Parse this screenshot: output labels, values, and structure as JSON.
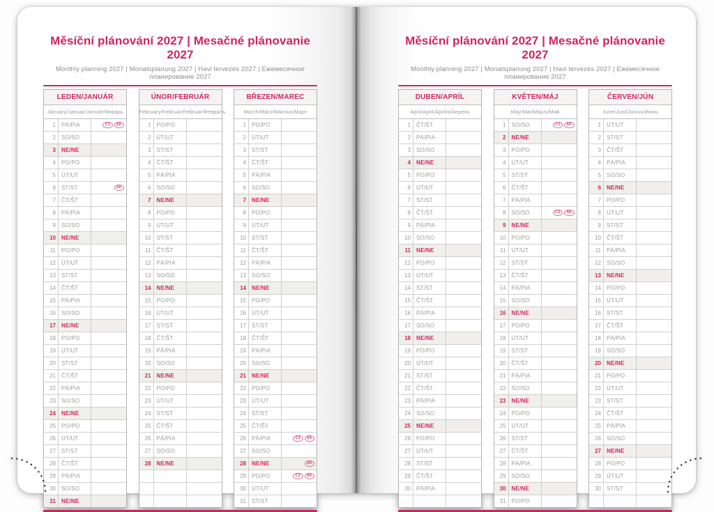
{
  "title": "Měsíční plánování 2027 | Mesačné plánovanie 2027",
  "subtitle": "Monthly planning 2027 | Monatsplanung 2027 | Havi tervezés 2027 | Ежемесячное планирование 2027",
  "colors": {
    "accent_pink": "#ce2560",
    "text_gray": "#9a9a9a",
    "sunday_row_bg": "#f0efec",
    "grid_border": "#cfcfcf",
    "perforation_dots": "#3c3c3c"
  },
  "badges_legend": [
    "CZ",
    "SK"
  ],
  "rows_per_month": 31,
  "months": [
    {
      "name": "LEDEN/JANUÁR",
      "intl": "January/Januar/Január/Январь",
      "days": [
        [
          1,
          "PÁ/PIA",
          0,
          "CZ SK"
        ],
        [
          2,
          "SO/SO",
          0,
          ""
        ],
        [
          3,
          "NE/NE",
          1,
          ""
        ],
        [
          4,
          "PO/PO",
          0,
          ""
        ],
        [
          5,
          "ÚT/UT",
          0,
          ""
        ],
        [
          6,
          "ST/ST",
          0,
          "SK"
        ],
        [
          7,
          "ČT/ŠT",
          0,
          ""
        ],
        [
          8,
          "PÁ/PIA",
          0,
          ""
        ],
        [
          9,
          "SO/SO",
          0,
          ""
        ],
        [
          10,
          "NE/NE",
          1,
          ""
        ],
        [
          11,
          "PO/PO",
          0,
          ""
        ],
        [
          12,
          "ÚT/UT",
          0,
          ""
        ],
        [
          13,
          "ST/ST",
          0,
          ""
        ],
        [
          14,
          "ČT/ŠT",
          0,
          ""
        ],
        [
          15,
          "PÁ/PIA",
          0,
          ""
        ],
        [
          16,
          "SO/SO",
          0,
          ""
        ],
        [
          17,
          "NE/NE",
          1,
          ""
        ],
        [
          18,
          "PO/PO",
          0,
          ""
        ],
        [
          19,
          "ÚT/UT",
          0,
          ""
        ],
        [
          20,
          "ST/ST",
          0,
          ""
        ],
        [
          21,
          "ČT/ŠT",
          0,
          ""
        ],
        [
          22,
          "PÁ/PIA",
          0,
          ""
        ],
        [
          23,
          "SO/SO",
          0,
          ""
        ],
        [
          24,
          "NE/NE",
          1,
          ""
        ],
        [
          25,
          "PO/PO",
          0,
          ""
        ],
        [
          26,
          "ÚT/UT",
          0,
          ""
        ],
        [
          27,
          "ST/ST",
          0,
          ""
        ],
        [
          28,
          "ČT/ŠT",
          0,
          ""
        ],
        [
          29,
          "PÁ/PIA",
          0,
          ""
        ],
        [
          30,
          "SO/SO",
          0,
          ""
        ],
        [
          31,
          "NE/NE",
          1,
          ""
        ]
      ]
    },
    {
      "name": "ÚNOR/FEBRUÁR",
      "intl": "February/Februar/Február/Февраль",
      "days": [
        [
          1,
          "PO/PO",
          0,
          ""
        ],
        [
          2,
          "ÚT/UT",
          0,
          ""
        ],
        [
          3,
          "ST/ST",
          0,
          ""
        ],
        [
          4,
          "ČT/ŠT",
          0,
          ""
        ],
        [
          5,
          "PÁ/PIA",
          0,
          ""
        ],
        [
          6,
          "SO/SO",
          0,
          ""
        ],
        [
          7,
          "NE/NE",
          1,
          ""
        ],
        [
          8,
          "PO/PO",
          0,
          ""
        ],
        [
          9,
          "ÚT/UT",
          0,
          ""
        ],
        [
          10,
          "ST/ST",
          0,
          ""
        ],
        [
          11,
          "ČT/ŠT",
          0,
          ""
        ],
        [
          12,
          "PÁ/PIA",
          0,
          ""
        ],
        [
          13,
          "SO/SO",
          0,
          ""
        ],
        [
          14,
          "NE/NE",
          1,
          ""
        ],
        [
          15,
          "PO/PO",
          0,
          ""
        ],
        [
          16,
          "ÚT/UT",
          0,
          ""
        ],
        [
          17,
          "ST/ST",
          0,
          ""
        ],
        [
          18,
          "ČT/ŠT",
          0,
          ""
        ],
        [
          19,
          "PÁ/PIA",
          0,
          ""
        ],
        [
          20,
          "SO/SO",
          0,
          ""
        ],
        [
          21,
          "NE/NE",
          1,
          ""
        ],
        [
          22,
          "PO/PO",
          0,
          ""
        ],
        [
          23,
          "ÚT/UT",
          0,
          ""
        ],
        [
          24,
          "ST/ST",
          0,
          ""
        ],
        [
          25,
          "ČT/ŠT",
          0,
          ""
        ],
        [
          26,
          "PÁ/PIA",
          0,
          ""
        ],
        [
          27,
          "SO/SO",
          0,
          ""
        ],
        [
          28,
          "NE/NE",
          1,
          ""
        ]
      ]
    },
    {
      "name": "BŘEZEN/MAREC",
      "intl": "March/März/Március/Март",
      "days": [
        [
          1,
          "PO/PO",
          0,
          ""
        ],
        [
          2,
          "ÚT/UT",
          0,
          ""
        ],
        [
          3,
          "ST/ST",
          0,
          ""
        ],
        [
          4,
          "ČT/ŠT",
          0,
          ""
        ],
        [
          5,
          "PÁ/PIA",
          0,
          ""
        ],
        [
          6,
          "SO/SO",
          0,
          ""
        ],
        [
          7,
          "NE/NE",
          1,
          ""
        ],
        [
          8,
          "PO/PO",
          0,
          ""
        ],
        [
          9,
          "ÚT/UT",
          0,
          ""
        ],
        [
          10,
          "ST/ST",
          0,
          ""
        ],
        [
          11,
          "ČT/ŠT",
          0,
          ""
        ],
        [
          12,
          "PÁ/PIA",
          0,
          ""
        ],
        [
          13,
          "SO/SO",
          0,
          ""
        ],
        [
          14,
          "NE/NE",
          1,
          ""
        ],
        [
          15,
          "PO/PO",
          0,
          ""
        ],
        [
          16,
          "ÚT/UT",
          0,
          ""
        ],
        [
          17,
          "ST/ST",
          0,
          ""
        ],
        [
          18,
          "ČT/ŠT",
          0,
          ""
        ],
        [
          19,
          "PÁ/PIA",
          0,
          ""
        ],
        [
          20,
          "SO/SO",
          0,
          ""
        ],
        [
          21,
          "NE/NE",
          1,
          ""
        ],
        [
          22,
          "PO/PO",
          0,
          ""
        ],
        [
          23,
          "ÚT/UT",
          0,
          ""
        ],
        [
          24,
          "ST/ST",
          0,
          ""
        ],
        [
          25,
          "ČT/ŠT",
          0,
          ""
        ],
        [
          26,
          "PÁ/PIA",
          0,
          "CZ SK"
        ],
        [
          27,
          "SO/SO",
          0,
          ""
        ],
        [
          28,
          "NE/NE",
          1,
          "SK"
        ],
        [
          29,
          "PO/PO",
          0,
          "CZ SK"
        ],
        [
          30,
          "ÚT/UT",
          0,
          ""
        ],
        [
          31,
          "ST/ST",
          0,
          ""
        ]
      ]
    },
    {
      "name": "DUBEN/APRÍL",
      "intl": "April/April/Április/Апрель",
      "days": [
        [
          1,
          "ČT/ŠT",
          0,
          ""
        ],
        [
          2,
          "PÁ/PIA",
          0,
          ""
        ],
        [
          3,
          "SO/SO",
          0,
          ""
        ],
        [
          4,
          "NE/NE",
          1,
          ""
        ],
        [
          5,
          "PO/PO",
          0,
          ""
        ],
        [
          6,
          "ÚT/UT",
          0,
          ""
        ],
        [
          7,
          "ST/ST",
          0,
          ""
        ],
        [
          8,
          "ČT/ŠT",
          0,
          ""
        ],
        [
          9,
          "PÁ/PIA",
          0,
          ""
        ],
        [
          10,
          "SO/SO",
          0,
          ""
        ],
        [
          11,
          "NE/NE",
          1,
          ""
        ],
        [
          12,
          "PO/PO",
          0,
          ""
        ],
        [
          13,
          "ÚT/UT",
          0,
          ""
        ],
        [
          14,
          "ST/ST",
          0,
          ""
        ],
        [
          15,
          "ČT/ŠT",
          0,
          ""
        ],
        [
          16,
          "PÁ/PIA",
          0,
          ""
        ],
        [
          17,
          "SO/SO",
          0,
          ""
        ],
        [
          18,
          "NE/NE",
          1,
          ""
        ],
        [
          19,
          "PO/PO",
          0,
          ""
        ],
        [
          20,
          "ÚT/UT",
          0,
          ""
        ],
        [
          21,
          "ST/ST",
          0,
          ""
        ],
        [
          22,
          "ČT/ŠT",
          0,
          ""
        ],
        [
          23,
          "PÁ/PIA",
          0,
          ""
        ],
        [
          24,
          "SO/SO",
          0,
          ""
        ],
        [
          25,
          "NE/NE",
          1,
          ""
        ],
        [
          26,
          "PO/PO",
          0,
          ""
        ],
        [
          27,
          "ÚT/UT",
          0,
          ""
        ],
        [
          28,
          "ST/ST",
          0,
          ""
        ],
        [
          29,
          "ČT/ŠT",
          0,
          ""
        ],
        [
          30,
          "PÁ/PIA",
          0,
          ""
        ]
      ]
    },
    {
      "name": "KVĚTEN/MÁJ",
      "intl": "May/Mai/Május/Май",
      "days": [
        [
          1,
          "SO/SO",
          0,
          "CZ SK"
        ],
        [
          2,
          "NE/NE",
          1,
          ""
        ],
        [
          3,
          "PO/PO",
          0,
          ""
        ],
        [
          4,
          "ÚT/UT",
          0,
          ""
        ],
        [
          5,
          "ST/ST",
          0,
          ""
        ],
        [
          6,
          "ČT/ŠT",
          0,
          ""
        ],
        [
          7,
          "PÁ/PIA",
          0,
          ""
        ],
        [
          8,
          "SO/SO",
          0,
          "CZ SK"
        ],
        [
          9,
          "NE/NE",
          1,
          ""
        ],
        [
          10,
          "PO/PO",
          0,
          ""
        ],
        [
          11,
          "ÚT/UT",
          0,
          ""
        ],
        [
          12,
          "ST/ST",
          0,
          ""
        ],
        [
          13,
          "ČT/ŠT",
          0,
          ""
        ],
        [
          14,
          "PÁ/PIA",
          0,
          ""
        ],
        [
          15,
          "SO/SO",
          0,
          ""
        ],
        [
          16,
          "NE/NE",
          1,
          ""
        ],
        [
          17,
          "PO/PO",
          0,
          ""
        ],
        [
          18,
          "ÚT/UT",
          0,
          ""
        ],
        [
          19,
          "ST/ST",
          0,
          ""
        ],
        [
          20,
          "ČT/ŠT",
          0,
          ""
        ],
        [
          21,
          "PÁ/PIA",
          0,
          ""
        ],
        [
          22,
          "SO/SO",
          0,
          ""
        ],
        [
          23,
          "NE/NE",
          1,
          ""
        ],
        [
          24,
          "PO/PO",
          0,
          ""
        ],
        [
          25,
          "ÚT/UT",
          0,
          ""
        ],
        [
          26,
          "ST/ST",
          0,
          ""
        ],
        [
          27,
          "ČT/ŠT",
          0,
          ""
        ],
        [
          28,
          "PÁ/PIA",
          0,
          ""
        ],
        [
          29,
          "SO/SO",
          0,
          ""
        ],
        [
          30,
          "NE/NE",
          1,
          ""
        ],
        [
          31,
          "PO/PO",
          0,
          ""
        ]
      ]
    },
    {
      "name": "ČERVEN/JÚN",
      "intl": "June/Juni/Június/Июнь",
      "days": [
        [
          1,
          "ÚT/UT",
          0,
          ""
        ],
        [
          2,
          "ST/ST",
          0,
          ""
        ],
        [
          3,
          "ČT/ŠT",
          0,
          ""
        ],
        [
          4,
          "PÁ/PIA",
          0,
          ""
        ],
        [
          5,
          "SO/SO",
          0,
          ""
        ],
        [
          6,
          "NE/NE",
          1,
          ""
        ],
        [
          7,
          "PO/PO",
          0,
          ""
        ],
        [
          8,
          "ÚT/UT",
          0,
          ""
        ],
        [
          9,
          "ST/ST",
          0,
          ""
        ],
        [
          10,
          "ČT/ŠT",
          0,
          ""
        ],
        [
          11,
          "PÁ/PIA",
          0,
          ""
        ],
        [
          12,
          "SO/SO",
          0,
          ""
        ],
        [
          13,
          "NE/NE",
          1,
          ""
        ],
        [
          14,
          "PO/PO",
          0,
          ""
        ],
        [
          15,
          "ÚT/UT",
          0,
          ""
        ],
        [
          16,
          "ST/ST",
          0,
          ""
        ],
        [
          17,
          "ČT/ŠT",
          0,
          ""
        ],
        [
          18,
          "PÁ/PIA",
          0,
          ""
        ],
        [
          19,
          "SO/SO",
          0,
          ""
        ],
        [
          20,
          "NE/NE",
          1,
          ""
        ],
        [
          21,
          "PO/PO",
          0,
          ""
        ],
        [
          22,
          "ÚT/UT",
          0,
          ""
        ],
        [
          23,
          "ST/ST",
          0,
          ""
        ],
        [
          24,
          "ČT/ŠT",
          0,
          ""
        ],
        [
          25,
          "PÁ/PIA",
          0,
          ""
        ],
        [
          26,
          "SO/SO",
          0,
          ""
        ],
        [
          27,
          "NE/NE",
          1,
          ""
        ],
        [
          28,
          "PO/PO",
          0,
          ""
        ],
        [
          29,
          "ÚT/UT",
          0,
          ""
        ],
        [
          30,
          "ST/ST",
          0,
          ""
        ]
      ]
    }
  ]
}
